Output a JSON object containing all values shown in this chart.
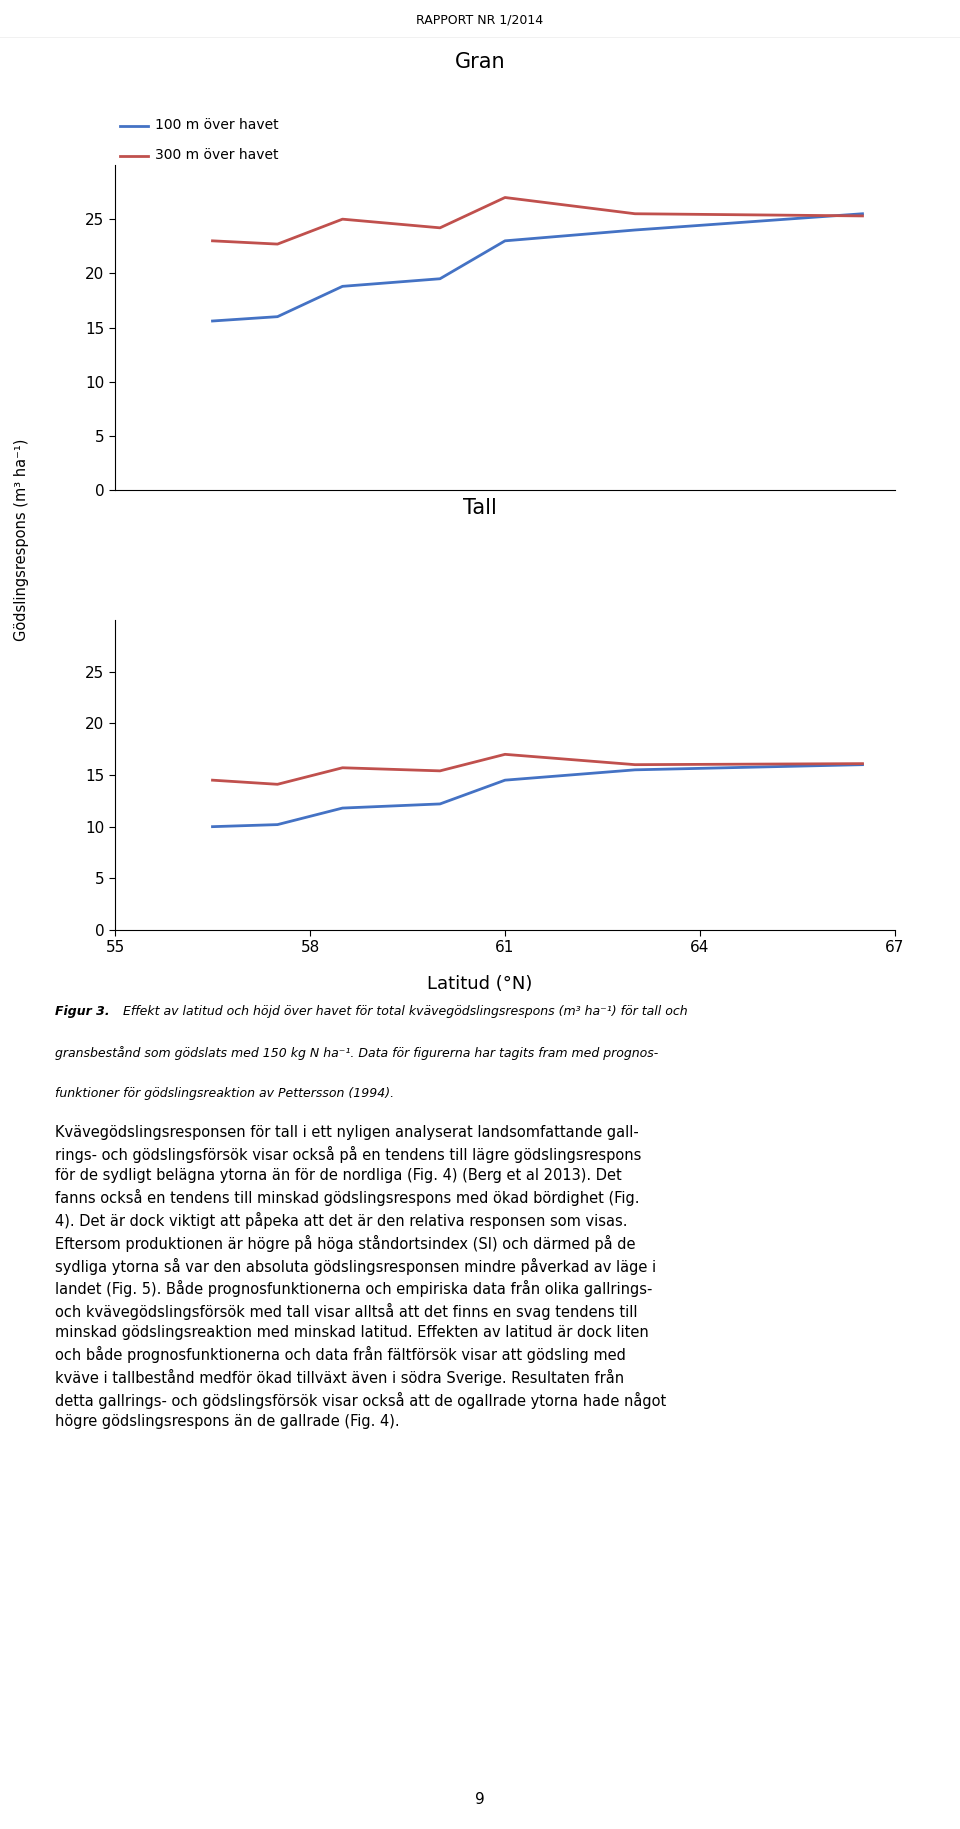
{
  "page_header": "RAPPORT NR 1/2014",
  "gran_title": "Gran",
  "tall_title": "Tall",
  "xlabel": "Latitud (°N)",
  "ylabel": "Gödslingsrespons (m³ ha⁻¹)",
  "legend_100": "100 m över havet",
  "legend_300": "300 m över havet",
  "x_ticks": [
    55,
    58,
    61,
    64,
    67
  ],
  "x_data": [
    56.5,
    57.5,
    58.5,
    60.0,
    61.0,
    63.0,
    66.5
  ],
  "gran_100m": [
    15.6,
    16.0,
    18.8,
    19.5,
    23.0,
    24.0,
    25.5
  ],
  "gran_300m": [
    23.0,
    22.7,
    25.0,
    24.2,
    27.0,
    25.5,
    25.3
  ],
  "tall_100m": [
    10.0,
    10.2,
    11.8,
    12.2,
    14.5,
    15.5,
    16.0
  ],
  "tall_300m": [
    14.5,
    14.1,
    15.7,
    15.4,
    17.0,
    16.0,
    16.1
  ],
  "ylim": [
    0,
    30
  ],
  "yticks": [
    0,
    5,
    10,
    15,
    20,
    25
  ],
  "color_100m": "#4472C4",
  "color_300m": "#C0504D",
  "line_width": 2.0,
  "caption_bold": "Figur 3.",
  "caption_rest": " Effekt av latitud och höjd över havet för total kvävegödslingsrespons (m³ ha⁻¹) för tall och gransbestånd som gödslats med 150 kg N ha⁻¹. Data för figurerna har tagits fram med prognosfunktioner för gödslingsreaktion av Pettersson (1994).",
  "body_text_lines": [
    "Kvävegödslingsresponsen för tall i ett nyligen analyserat landsomfattande gall-",
    "rings- och gödslingsförsök visar också på en tendens till lägre gödslingsrespons",
    "för de sydligt belägna ytorna än för de nordliga (Fig. 4) (Berg et al 2013). Det",
    "fanns också en tendens till minskad gödslingsrespons med ökad bördighet (Fig.",
    "4). Det är dock viktigt att påpeka att det är den relativa responsen som visas.",
    "Eftersom produktionen är högre på höga ståndortsindex (SI) och därmed på de",
    "sydliga ytorna så var den absoluta gödslingsresponsen mindre påverkad av läge i",
    "landet (Fig. 5). Både prognosfunktionerna och empiriska data från olika gallrings-",
    "och kvävegödslingsförsök med tall visar alltså att det finns en svag tendens till",
    "minskad gödslingsreaktion med minskad latitud. Effekten av latitud är dock liten",
    "och både prognosfunktionerna och data från fältförsök visar att gödsling med",
    "kväve i tallbestånd medför ökad tillväxt även i södra Sverige. Resultaten från",
    "detta gallrings- och gödslingsförsök visar också att de ogallrade ytorna hade något",
    "högre gödslingsrespons än de gallrade (Fig. 4)."
  ],
  "page_number": "9"
}
